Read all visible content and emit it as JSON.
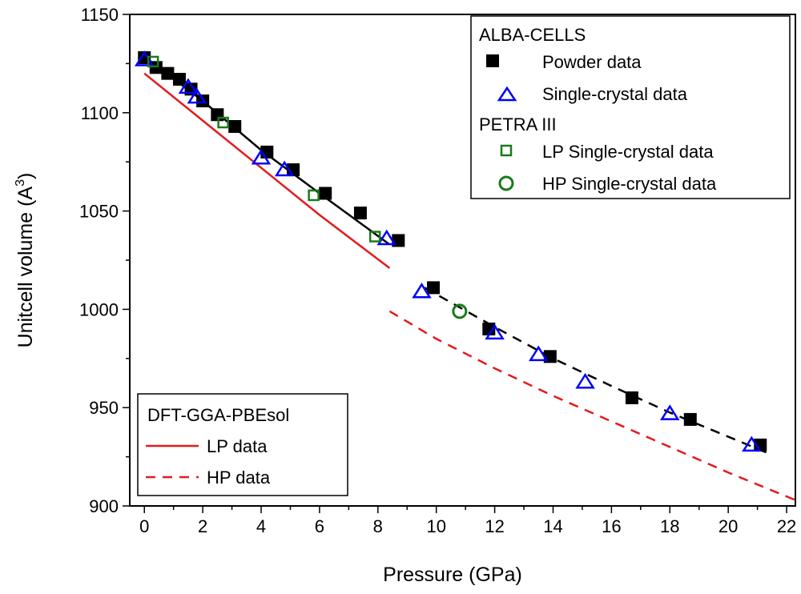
{
  "chart_data": {
    "type": "scatter",
    "xlabel": "Pressure (GPa)",
    "ylabel_main": "Unitcell volume (A",
    "ylabel_sup": "3",
    "ylabel_end": ")",
    "xlim": [
      -0.5,
      22.3
    ],
    "ylim": [
      900,
      1150
    ],
    "x_ticks": [
      "0",
      "2",
      "4",
      "6",
      "8",
      "10",
      "12",
      "14",
      "16",
      "18",
      "20",
      "22"
    ],
    "y_ticks": [
      "900",
      "950",
      "1000",
      "1050",
      "1100",
      "1150"
    ],
    "legend_top": {
      "group1": "ALBA-CELLS",
      "powder": "Powder data",
      "single": "Single-crystal data",
      "group2": "PETRA III",
      "lp_single": "LP Single-crystal data",
      "hp_single": "HP Single-crystal data"
    },
    "legend_bottom": {
      "title": "DFT-GGA-PBEsol",
      "lp": "LP data",
      "hp": "HP data"
    },
    "colors": {
      "powder": "#000000",
      "single": "#0000ff",
      "petra": "#1a7a1a",
      "dft": "#e31a1c"
    },
    "series": [
      {
        "name": "Powder data",
        "marker": "square",
        "x": [
          0.0,
          0.4,
          0.8,
          1.2,
          1.6,
          2.0,
          2.5,
          3.1,
          4.2,
          5.1,
          6.2,
          7.4,
          8.7,
          9.9,
          11.8,
          13.9,
          16.7,
          18.7,
          21.1
        ],
        "y": [
          1128,
          1123,
          1120,
          1117,
          1112,
          1106,
          1099,
          1093,
          1080,
          1071,
          1059,
          1049,
          1035,
          1011,
          990,
          976,
          955,
          944,
          931
        ]
      },
      {
        "name": "Single-crystal data",
        "marker": "triangle",
        "x": [
          0.0,
          1.5,
          1.8,
          4.0,
          4.8,
          8.3,
          9.5,
          12.0,
          13.5,
          15.1,
          18.0,
          20.8
        ],
        "y": [
          1127,
          1113,
          1108,
          1077,
          1071,
          1036,
          1009,
          988,
          977,
          963,
          947,
          931
        ]
      },
      {
        "name": "LP Single-crystal data",
        "marker": "open-square",
        "x": [
          0.3,
          2.7,
          5.8,
          7.9
        ],
        "y": [
          1126,
          1095,
          1058,
          1037
        ]
      },
      {
        "name": "HP Single-crystal data",
        "marker": "circle",
        "x": [
          10.8
        ],
        "y": [
          999
        ]
      }
    ],
    "fit_lp": {
      "x": [
        0.0,
        2.0,
        4.0,
        6.0,
        8.4
      ],
      "y": [
        1128.5,
        1106,
        1081,
        1059,
        1033
      ]
    },
    "fit_hp": {
      "x": [
        9.6,
        12.0,
        14.0,
        16.0,
        18.0,
        21.5
      ],
      "y": [
        1011,
        991,
        975,
        961,
        947.5,
        926
      ]
    },
    "dft_lp": {
      "x": [
        0.0,
        2.0,
        4.0,
        6.0,
        8.4
      ],
      "y": [
        1120,
        1096,
        1072,
        1048,
        1021
      ]
    },
    "dft_hp": {
      "x": [
        8.4,
        10.0,
        12.0,
        14.0,
        16.0,
        18.0,
        20.0,
        22.3
      ],
      "y": [
        999,
        985,
        970,
        956,
        943,
        930,
        917,
        903
      ]
    }
  }
}
